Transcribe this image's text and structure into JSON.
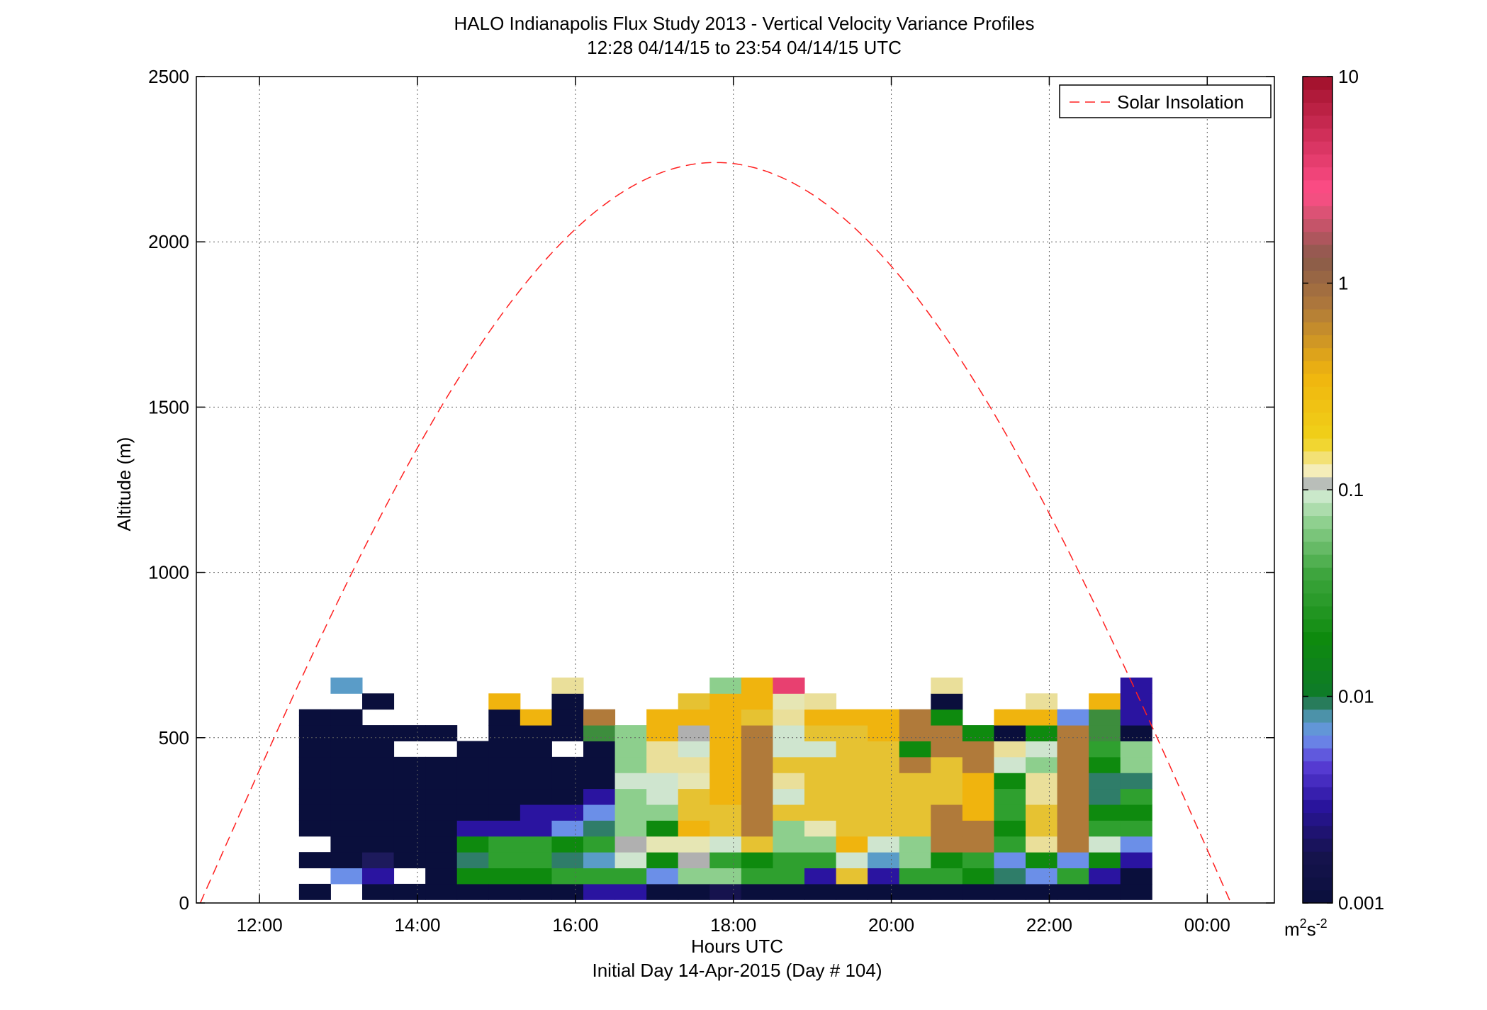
{
  "chart_data": {
    "type": "heatmap",
    "title": "HALO Indianapolis Flux Study 2013 - Vertical Velocity Variance Profiles",
    "subtitle": "12:28 04/14/15 to 23:54 04/14/15  UTC",
    "xlabel": "Hours UTC",
    "xlabel2": "Initial Day 14-Apr-2015 (Day # 104)",
    "ylabel": "Altitude (m)",
    "xlim": [
      11.2,
      24.85
    ],
    "ylim": [
      0,
      2500
    ],
    "x_ticks": [
      12,
      14,
      16,
      18,
      20,
      22,
      24
    ],
    "x_tick_labels": [
      "12:00",
      "14:00",
      "16:00",
      "18:00",
      "20:00",
      "22:00",
      "00:00"
    ],
    "y_ticks": [
      0,
      500,
      1000,
      1500,
      2000,
      2500
    ],
    "y_tick_labels": [
      "0",
      "500",
      "1000",
      "1500",
      "2000",
      "2500"
    ],
    "grid": true,
    "legend": {
      "position": "top-right",
      "entries": [
        {
          "label": "Solar Insolation",
          "color": "#ff2020",
          "style": "dashed"
        }
      ]
    },
    "colorbar": {
      "scale": "log",
      "range": [
        0.001,
        10
      ],
      "tick_values": [
        0.001,
        0.01,
        0.1,
        1,
        10
      ],
      "tick_labels": [
        "0.001",
        "0.01",
        "0.1",
        "1",
        "10"
      ],
      "unit_base": "m",
      "unit_exp1": "2",
      "unit_mid": "s",
      "unit_exp2": "-2"
    },
    "cell": {
      "dt_hours": 0.4,
      "dz_m": 48,
      "z0_m": 48,
      "t0_hours": 12.5
    },
    "columns": [
      "WWWWWXXXXXXXXXXXX",
      "WWWWYXXXXXXXXXXXX",
      "WWWXXXXXXXXXXXXXX",
      "WWWXXXXXXXXXXXXXX",
      "WWWXXXXXXXXXXXXXX",
      "WWWWWWWWWWXXXXXXX",
      "WYYWWWWXXXXXXXXXX",
      "WDJXXXXXXXXXXXXXX",
      "WJMXXXXXXXXXXXXXX",
      "WKNWXXXXXXXXXXXXX",
      "WKMXXXXXXXXXXXXXX",
      "WHMWWWWXXXXXXXXXX",
      "VIKHDYYYYPXXXXXXX",
      "VHKWWWWWXXXXXXXXX",
      "VHJWWWWXXXXXXXXXX",
      "QUPDDGHCEXXXXXXXX",
      "YHAKJVVXXXXXXXXXX",
      "RKKMRUUUWXXXXXXXX",
      "WWRWXXXXXXXXXXXXX",
      "WNTWWXXXXXXXXXXXX",
      "WXHXXXXXXXXXXXXXX",
      "WWWXXXXXXXXXXXXXX"
    ],
    "columns_b": [
      "YMGZDRPJEXXXXXXX",
      "YFMHGGFHFRXXXXXX",
      "YKKKZZEAJAEXXXXX",
      "YNNSFNNZBZRXXXXX",
      "YLKBCEUBEIIHXXXX",
      "YMBEBEBUTRLYXXXX",
      "YLILMFBBSMFIRXXX",
      "VBLMLHHHIFFHXXXX",
      "YVRQFTBCBAOIXXXX",
      "YLLXXXXXXXXXXXXX"
    ]
  },
  "colors": {
    "background": "#ffffff",
    "axis": "#000000",
    "grid": "#606060",
    "curve": "#ff2020"
  }
}
